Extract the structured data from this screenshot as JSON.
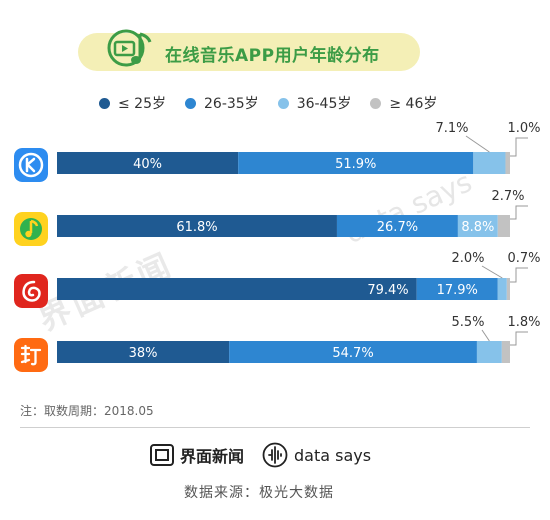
{
  "header": {
    "title": "在线音乐APP用户年龄分布"
  },
  "legend": {
    "items": [
      {
        "label": "≤ 25岁",
        "color": "#1f5a92"
      },
      {
        "label": "26-35岁",
        "color": "#2e86d1"
      },
      {
        "label": "36-45岁",
        "color": "#86c2ea"
      },
      {
        "label": "≥ 46岁",
        "color": "#c2c2c2"
      }
    ]
  },
  "apps": [
    {
      "icon": "kugou-music-icon",
      "color": "#2d8cf0"
    },
    {
      "icon": "qq-music-icon",
      "color": "#ffd21f"
    },
    {
      "icon": "netease-cloud-music-icon",
      "color": "#e0261e"
    },
    {
      "icon": "xiami-music-icon",
      "color": "#ff6a12"
    }
  ],
  "chart_data": {
    "type": "bar",
    "orientation": "horizontal",
    "stacked": true,
    "title": "在线音乐APP用户年龄分布",
    "xlim": [
      0,
      100
    ],
    "grid": false,
    "legend_position": "top",
    "series": [
      {
        "name": "≤ 25岁",
        "values": [
          40,
          61.8,
          79.4,
          38
        ]
      },
      {
        "name": "26-35岁",
        "values": [
          51.9,
          26.7,
          17.9,
          54.7
        ]
      },
      {
        "name": "36-45岁",
        "values": [
          7.1,
          8.8,
          2.0,
          5.5
        ]
      },
      {
        "name": "≥ 46岁",
        "values": [
          1.0,
          2.7,
          0.7,
          1.8
        ]
      }
    ],
    "labels": [
      [
        "40%",
        "51.9%",
        "7.1%",
        "1.0%"
      ],
      [
        "61.8%",
        "26.7%",
        "8.8%",
        "2.7%"
      ],
      [
        "79.4%",
        "17.9%",
        "2.0%",
        "0.7%"
      ],
      [
        "38%",
        "54.7%",
        "5.5%",
        "1.8%"
      ]
    ]
  },
  "footer": {
    "note": "注：取数周期：2018.05",
    "brand_jiemian": "界面新闻",
    "brand_datasays": "data says",
    "source": "数据来源：极光大数据"
  },
  "watermark": {
    "left": "界面新闻",
    "right": "data says"
  }
}
